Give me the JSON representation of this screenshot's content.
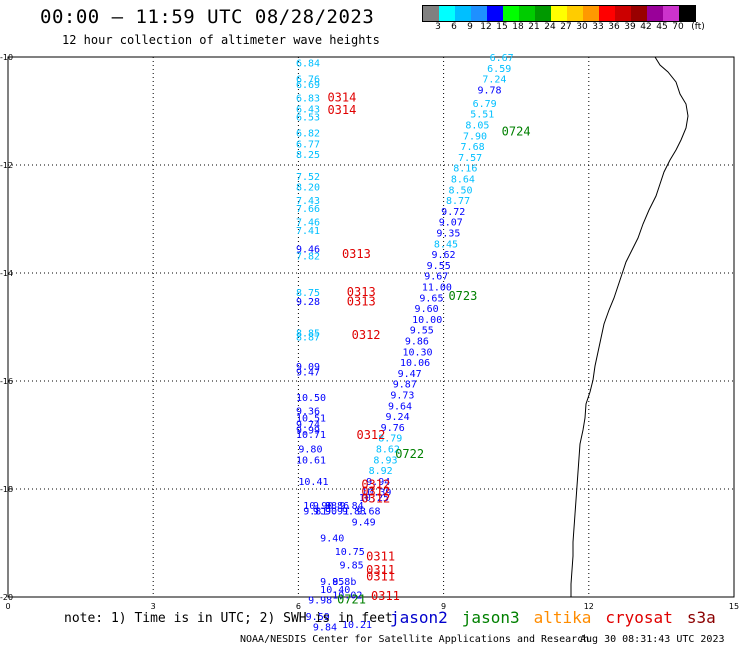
{
  "header": {
    "title": "00:00 – 11:59 UTC 08/28/2023",
    "subtitle": "12 hour collection of altimeter wave heights"
  },
  "legend": {
    "unit_label": "(ft)",
    "ticks": [
      "3",
      "6",
      "9",
      "12",
      "15",
      "18",
      "21",
      "24",
      "27",
      "30",
      "33",
      "36",
      "39",
      "42",
      "45",
      "70"
    ],
    "colors": [
      "#808080",
      "#00ffff",
      "#00bfff",
      "#1e90ff",
      "#0000ff",
      "#00ff00",
      "#00cc00",
      "#009900",
      "#ffff00",
      "#ffcc00",
      "#ff9900",
      "#ff0000",
      "#cc0000",
      "#990000",
      "#990099",
      "#cc33cc",
      "#000000"
    ]
  },
  "map": {
    "x_ticks": [
      "0",
      "3",
      "6",
      "9",
      "12",
      "15"
    ],
    "y_ticks": [
      "-10",
      "-12",
      "-14",
      "-16",
      "-18",
      "-20"
    ],
    "pass_labels": [
      {
        "text": "0314",
        "color": "#e00000",
        "lon": 6.6,
        "lat": -10.75
      },
      {
        "text": "0314",
        "color": "#e00000",
        "lon": 6.6,
        "lat": -10.98
      },
      {
        "text": "0724",
        "color": "#008000",
        "lon": 10.2,
        "lat": -11.38
      },
      {
        "text": "0313",
        "color": "#e00000",
        "lon": 6.9,
        "lat": -13.65
      },
      {
        "text": "0313",
        "color": "#e00000",
        "lon": 7.0,
        "lat": -14.35
      },
      {
        "text": "0313",
        "color": "#e00000",
        "lon": 7.0,
        "lat": -14.53
      },
      {
        "text": "0723",
        "color": "#008000",
        "lon": 9.1,
        "lat": -14.43
      },
      {
        "text": "0312",
        "color": "#e00000",
        "lon": 7.1,
        "lat": -15.15
      },
      {
        "text": "0312",
        "color": "#e00000",
        "lon": 7.2,
        "lat": -17.0
      },
      {
        "text": "0722",
        "color": "#008000",
        "lon": 8.0,
        "lat": -17.35
      },
      {
        "text": "0312",
        "color": "#e00000",
        "lon": 7.3,
        "lat": -17.92
      },
      {
        "text": "0312",
        "color": "#e00000",
        "lon": 7.3,
        "lat": -18.05
      },
      {
        "text": "0312",
        "color": "#e00000",
        "lon": 7.3,
        "lat": -18.18
      },
      {
        "text": "0311",
        "color": "#e00000",
        "lon": 7.4,
        "lat": -19.25
      },
      {
        "text": "0311",
        "color": "#e00000",
        "lon": 7.4,
        "lat": -19.5
      },
      {
        "text": "0311",
        "color": "#e00000",
        "lon": 7.4,
        "lat": -19.62
      },
      {
        "text": "0311",
        "color": "#e00000",
        "lon": 7.5,
        "lat": -19.98
      },
      {
        "text": "0721",
        "color": "#008000",
        "lon": 6.8,
        "lat": -20.05
      }
    ],
    "observations": [
      {
        "v": "6.67",
        "lon": 9.95,
        "lat": -10.0,
        "c": "#00bfff"
      },
      {
        "v": "6.59",
        "lon": 9.9,
        "lat": -10.2,
        "c": "#00bfff"
      },
      {
        "v": "7.24",
        "lon": 9.8,
        "lat": -10.4,
        "c": "#00bfff"
      },
      {
        "v": "9.78",
        "lon": 9.7,
        "lat": -10.6,
        "c": "#0000ff"
      },
      {
        "v": "6.79",
        "lon": 9.6,
        "lat": -10.85,
        "c": "#00bfff"
      },
      {
        "v": "5.51",
        "lon": 9.55,
        "lat": -11.05,
        "c": "#00bfff"
      },
      {
        "v": "8.05",
        "lon": 9.45,
        "lat": -11.25,
        "c": "#00bfff"
      },
      {
        "v": "7.90",
        "lon": 9.4,
        "lat": -11.45,
        "c": "#00bfff"
      },
      {
        "v": "7.68",
        "lon": 9.35,
        "lat": -11.65,
        "c": "#00bfff"
      },
      {
        "v": "7.57",
        "lon": 9.3,
        "lat": -11.85,
        "c": "#00bfff"
      },
      {
        "v": "8.16",
        "lon": 9.2,
        "lat": -12.05,
        "c": "#00bfff"
      },
      {
        "v": "8.64",
        "lon": 9.15,
        "lat": -12.25,
        "c": "#00bfff"
      },
      {
        "v": "8.50",
        "lon": 9.1,
        "lat": -12.45,
        "c": "#00bfff"
      },
      {
        "v": "8.77",
        "lon": 9.05,
        "lat": -12.65,
        "c": "#00bfff"
      },
      {
        "v": "9.72",
        "lon": 8.95,
        "lat": -12.85,
        "c": "#0000ff"
      },
      {
        "v": "9.07",
        "lon": 8.9,
        "lat": -13.05,
        "c": "#0000ff"
      },
      {
        "v": "9.35",
        "lon": 8.85,
        "lat": -13.25,
        "c": "#0000ff"
      },
      {
        "v": "8.45",
        "lon": 8.8,
        "lat": -13.45,
        "c": "#00bfff"
      },
      {
        "v": "9.62",
        "lon": 8.75,
        "lat": -13.65,
        "c": "#0000ff"
      },
      {
        "v": "9.55",
        "lon": 8.65,
        "lat": -13.85,
        "c": "#0000ff"
      },
      {
        "v": "9.67",
        "lon": 8.6,
        "lat": -14.05,
        "c": "#0000ff"
      },
      {
        "v": "11.00",
        "lon": 8.55,
        "lat": -14.25,
        "c": "#0000ff"
      },
      {
        "v": "9.65",
        "lon": 8.5,
        "lat": -14.45,
        "c": "#0000ff"
      },
      {
        "v": "9.60",
        "lon": 8.4,
        "lat": -14.65,
        "c": "#0000ff"
      },
      {
        "v": "10.00",
        "lon": 8.35,
        "lat": -14.85,
        "c": "#0000ff"
      },
      {
        "v": "9.55",
        "lon": 8.3,
        "lat": -15.05,
        "c": "#0000ff"
      },
      {
        "v": "9.86",
        "lon": 8.2,
        "lat": -15.25,
        "c": "#0000ff"
      },
      {
        "v": "10.30",
        "lon": 8.15,
        "lat": -15.45,
        "c": "#0000ff"
      },
      {
        "v": "10.06",
        "lon": 8.1,
        "lat": -15.65,
        "c": "#0000ff"
      },
      {
        "v": "9.47",
        "lon": 8.05,
        "lat": -15.85,
        "c": "#0000ff"
      },
      {
        "v": "9.87",
        "lon": 7.95,
        "lat": -16.05,
        "c": "#0000ff"
      },
      {
        "v": "9.73",
        "lon": 7.9,
        "lat": -16.25,
        "c": "#0000ff"
      },
      {
        "v": "9.64",
        "lon": 7.85,
        "lat": -16.45,
        "c": "#0000ff"
      },
      {
        "v": "9.24",
        "lon": 7.8,
        "lat": -16.65,
        "c": "#0000ff"
      },
      {
        "v": "9.76",
        "lon": 7.7,
        "lat": -16.85,
        "c": "#0000ff"
      },
      {
        "v": "8.79",
        "lon": 7.65,
        "lat": -17.05,
        "c": "#00bfff"
      },
      {
        "v": "8.62",
        "lon": 7.6,
        "lat": -17.25,
        "c": "#00bfff"
      },
      {
        "v": "8.93",
        "lon": 7.55,
        "lat": -17.45,
        "c": "#00bfff"
      },
      {
        "v": "8.92",
        "lon": 7.45,
        "lat": -17.65,
        "c": "#00bfff"
      },
      {
        "v": "9.94",
        "lon": 7.4,
        "lat": -17.85,
        "c": "#0000ff"
      },
      {
        "v": "10.39",
        "lon": 7.3,
        "lat": -18.05,
        "c": "#0000ff"
      },
      {
        "v": "10.25",
        "lon": 7.25,
        "lat": -18.15,
        "c": "#0000ff"
      },
      {
        "v": "9.68",
        "lon": 7.2,
        "lat": -18.4,
        "c": "#0000ff"
      },
      {
        "v": "9.49",
        "lon": 7.1,
        "lat": -18.6,
        "c": "#0000ff"
      },
      {
        "v": "6.84",
        "lon": 5.95,
        "lat": -10.1,
        "c": "#00bfff"
      },
      {
        "v": "6.76",
        "lon": 5.95,
        "lat": -10.4,
        "c": "#00bfff"
      },
      {
        "v": "6.69",
        "lon": 5.95,
        "lat": -10.5,
        "c": "#00bfff"
      },
      {
        "v": "6.83",
        "lon": 5.95,
        "lat": -10.75,
        "c": "#00bfff"
      },
      {
        "v": "6.43",
        "lon": 5.95,
        "lat": -10.95,
        "c": "#00bfff"
      },
      {
        "v": "6.53",
        "lon": 5.95,
        "lat": -11.1,
        "c": "#00bfff"
      },
      {
        "v": "6.82",
        "lon": 5.95,
        "lat": -11.4,
        "c": "#00bfff"
      },
      {
        "v": "6.77",
        "lon": 5.95,
        "lat": -11.6,
        "c": "#00bfff"
      },
      {
        "v": "8.25",
        "lon": 5.95,
        "lat": -11.8,
        "c": "#00bfff"
      },
      {
        "v": "7.52",
        "lon": 5.95,
        "lat": -12.2,
        "c": "#00bfff"
      },
      {
        "v": "8.20",
        "lon": 5.95,
        "lat": -12.4,
        "c": "#00bfff"
      },
      {
        "v": "7.43",
        "lon": 5.95,
        "lat": -12.65,
        "c": "#00bfff"
      },
      {
        "v": "7.66",
        "lon": 5.95,
        "lat": -12.8,
        "c": "#00bfff"
      },
      {
        "v": "7.46",
        "lon": 5.95,
        "lat": -13.05,
        "c": "#00bfff"
      },
      {
        "v": "7.41",
        "lon": 5.95,
        "lat": -13.2,
        "c": "#00bfff"
      },
      {
        "v": "9.46",
        "lon": 5.95,
        "lat": -13.55,
        "c": "#0000ff"
      },
      {
        "v": "7.82",
        "lon": 5.95,
        "lat": -13.68,
        "c": "#00bfff"
      },
      {
        "v": "8.75",
        "lon": 5.95,
        "lat": -14.35,
        "c": "#00bfff"
      },
      {
        "v": "9.28",
        "lon": 5.95,
        "lat": -14.52,
        "c": "#0000ff"
      },
      {
        "v": "8.85",
        "lon": 5.95,
        "lat": -15.1,
        "c": "#00bfff"
      },
      {
        "v": "8.87",
        "lon": 5.95,
        "lat": -15.18,
        "c": "#00bfff"
      },
      {
        "v": "9.09",
        "lon": 5.95,
        "lat": -15.72,
        "c": "#0000ff"
      },
      {
        "v": "9.47",
        "lon": 5.95,
        "lat": -15.82,
        "c": "#0000ff"
      },
      {
        "v": "10.50",
        "lon": 5.95,
        "lat": -16.3,
        "c": "#0000ff"
      },
      {
        "v": "9.36",
        "lon": 5.95,
        "lat": -16.55,
        "c": "#0000ff"
      },
      {
        "v": "10.51",
        "lon": 5.95,
        "lat": -16.68,
        "c": "#0000ff"
      },
      {
        "v": "9.74",
        "lon": 5.95,
        "lat": -16.8,
        "c": "#0000ff"
      },
      {
        "v": "9.99",
        "lon": 5.95,
        "lat": -16.9,
        "c": "#0000ff"
      },
      {
        "v": "10.71",
        "lon": 5.95,
        "lat": -16.98,
        "c": "#0000ff"
      },
      {
        "v": "9.80",
        "lon": 6.0,
        "lat": -17.25,
        "c": "#0000ff"
      },
      {
        "v": "10.61",
        "lon": 5.95,
        "lat": -17.45,
        "c": "#0000ff"
      },
      {
        "v": "10.41",
        "lon": 6.0,
        "lat": -17.85,
        "c": "#0000ff"
      },
      {
        "v": "10.90",
        "lon": 6.1,
        "lat": -18.3,
        "c": "#0000ff"
      },
      {
        "v": "9.88",
        "lon": 6.3,
        "lat": -18.3,
        "c": "#0000ff"
      },
      {
        "v": "9.86",
        "lon": 6.55,
        "lat": -18.3,
        "c": "#0000ff"
      },
      {
        "v": "9.84",
        "lon": 6.85,
        "lat": -18.3,
        "c": "#0000ff"
      },
      {
        "v": "9.81",
        "lon": 6.1,
        "lat": -18.4,
        "c": "#0000ff"
      },
      {
        "v": "9.90",
        "lon": 6.3,
        "lat": -18.4,
        "c": "#0000ff"
      },
      {
        "v": "9.91",
        "lon": 6.55,
        "lat": -18.4,
        "c": "#0000ff"
      },
      {
        "v": "9.83",
        "lon": 6.9,
        "lat": -18.4,
        "c": "#0000ff"
      },
      {
        "v": "9.40",
        "lon": 6.45,
        "lat": -18.9,
        "c": "#0000ff"
      },
      {
        "v": "10.75",
        "lon": 6.75,
        "lat": -19.15,
        "c": "#0000ff"
      },
      {
        "v": "9.85",
        "lon": 6.85,
        "lat": -19.4,
        "c": "#0000ff"
      },
      {
        "v": "9.85",
        "lon": 6.45,
        "lat": -19.7,
        "c": "#0000ff"
      },
      {
        "v": "9.8b",
        "lon": 6.7,
        "lat": -19.7,
        "c": "#0000ff"
      },
      {
        "v": "10.40",
        "lon": 6.45,
        "lat": -19.85,
        "c": "#0000ff"
      },
      {
        "v": "10.02",
        "lon": 6.7,
        "lat": -19.95,
        "c": "#0000ff"
      },
      {
        "v": "9.98",
        "lon": 6.2,
        "lat": -20.05,
        "c": "#0000ff"
      },
      {
        "v": "9.59",
        "lon": 6.15,
        "lat": -20.35,
        "c": "#0000ff"
      },
      {
        "v": "9.84",
        "lon": 6.3,
        "lat": -20.55,
        "c": "#0000ff"
      },
      {
        "v": "10.21",
        "lon": 6.9,
        "lat": -20.5,
        "c": "#0000ff"
      }
    ]
  },
  "footer": {
    "note": "note: 1) Time is in UTC; 2) SWH is in feet",
    "satellites": [
      {
        "name": "jason2",
        "color": "#0000cc"
      },
      {
        "name": "jason3",
        "color": "#008000"
      },
      {
        "name": "altika",
        "color": "#ff8c00"
      },
      {
        "name": "cryosat",
        "color": "#e00000"
      },
      {
        "name": "s3a",
        "color": "#8b0000"
      }
    ],
    "credit": "NOAA/NESDIS Center for Satellite Applications and Research",
    "timestamp": "Aug 30 08:31:43 UTC 2023"
  }
}
